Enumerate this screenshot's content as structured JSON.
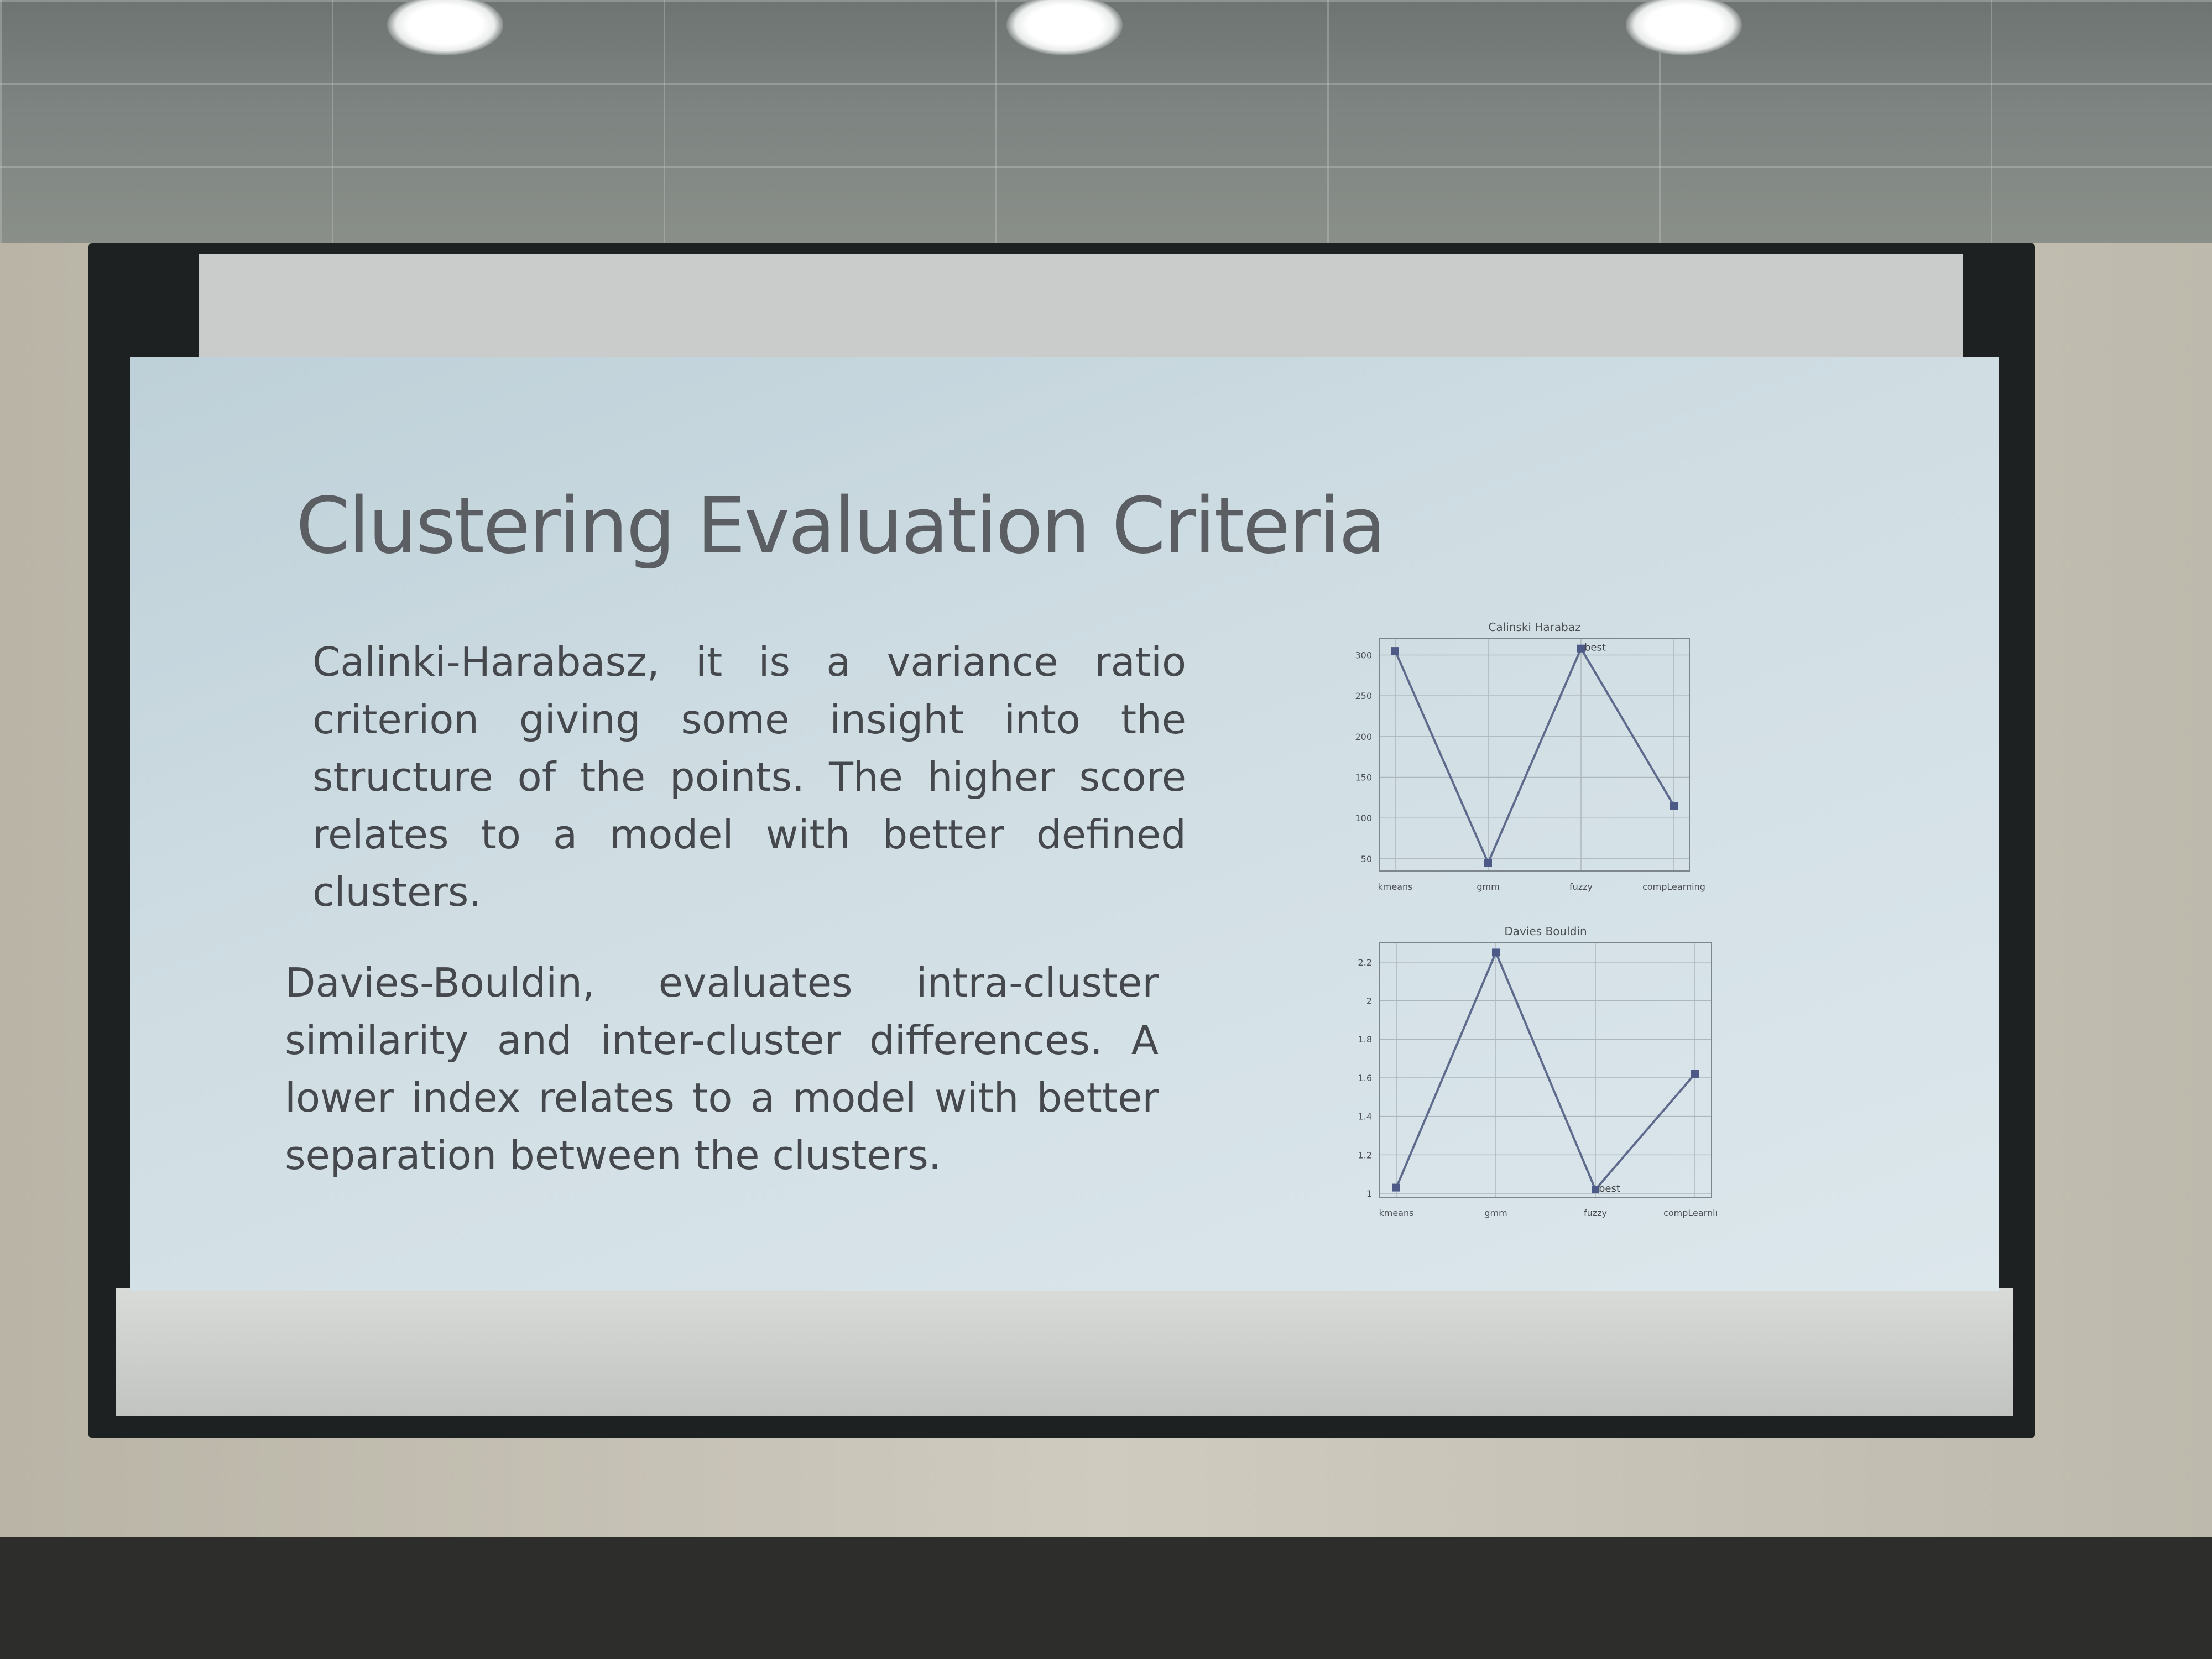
{
  "slide": {
    "title": "Clustering Evaluation Criteria",
    "paragraphs": [
      "Calinki-Harabasz, it is a variance ratio criterion giving some insight into the structure of the points. The higher score relates to a model with better defined clusters.",
      "Davies-Bouldin, evaluates intra-cluster similarity and inter-cluster differences. A lower index relates to a model with better separation between the clusters."
    ]
  },
  "colors": {
    "line": "#5f6b8c",
    "marker": "#4d5a88",
    "grid": "#aeb6bd",
    "axes": "#7d858d",
    "text": "#45484c"
  },
  "chart_data": [
    {
      "type": "line",
      "title": "Calinski Harabaz",
      "categories": [
        "kmeans",
        "gmm",
        "fuzzy",
        "compLearning"
      ],
      "values": [
        305,
        45,
        308,
        115
      ],
      "yticks": [
        50,
        100,
        150,
        200,
        250,
        300
      ],
      "ylim": [
        35,
        320
      ],
      "annotations": [
        {
          "category": "fuzzy",
          "text": "best"
        }
      ],
      "grid": true
    },
    {
      "type": "line",
      "title": "Davies Bouldin",
      "categories": [
        "kmeans",
        "gmm",
        "fuzzy",
        "compLearning"
      ],
      "values": [
        1.03,
        2.25,
        1.02,
        1.62
      ],
      "yticks": [
        1.0,
        1.2,
        1.4,
        1.6,
        1.8,
        2.0,
        2.2
      ],
      "ylim": [
        0.98,
        2.3
      ],
      "annotations": [
        {
          "category": "fuzzy",
          "text": "best"
        }
      ],
      "grid": true
    }
  ]
}
